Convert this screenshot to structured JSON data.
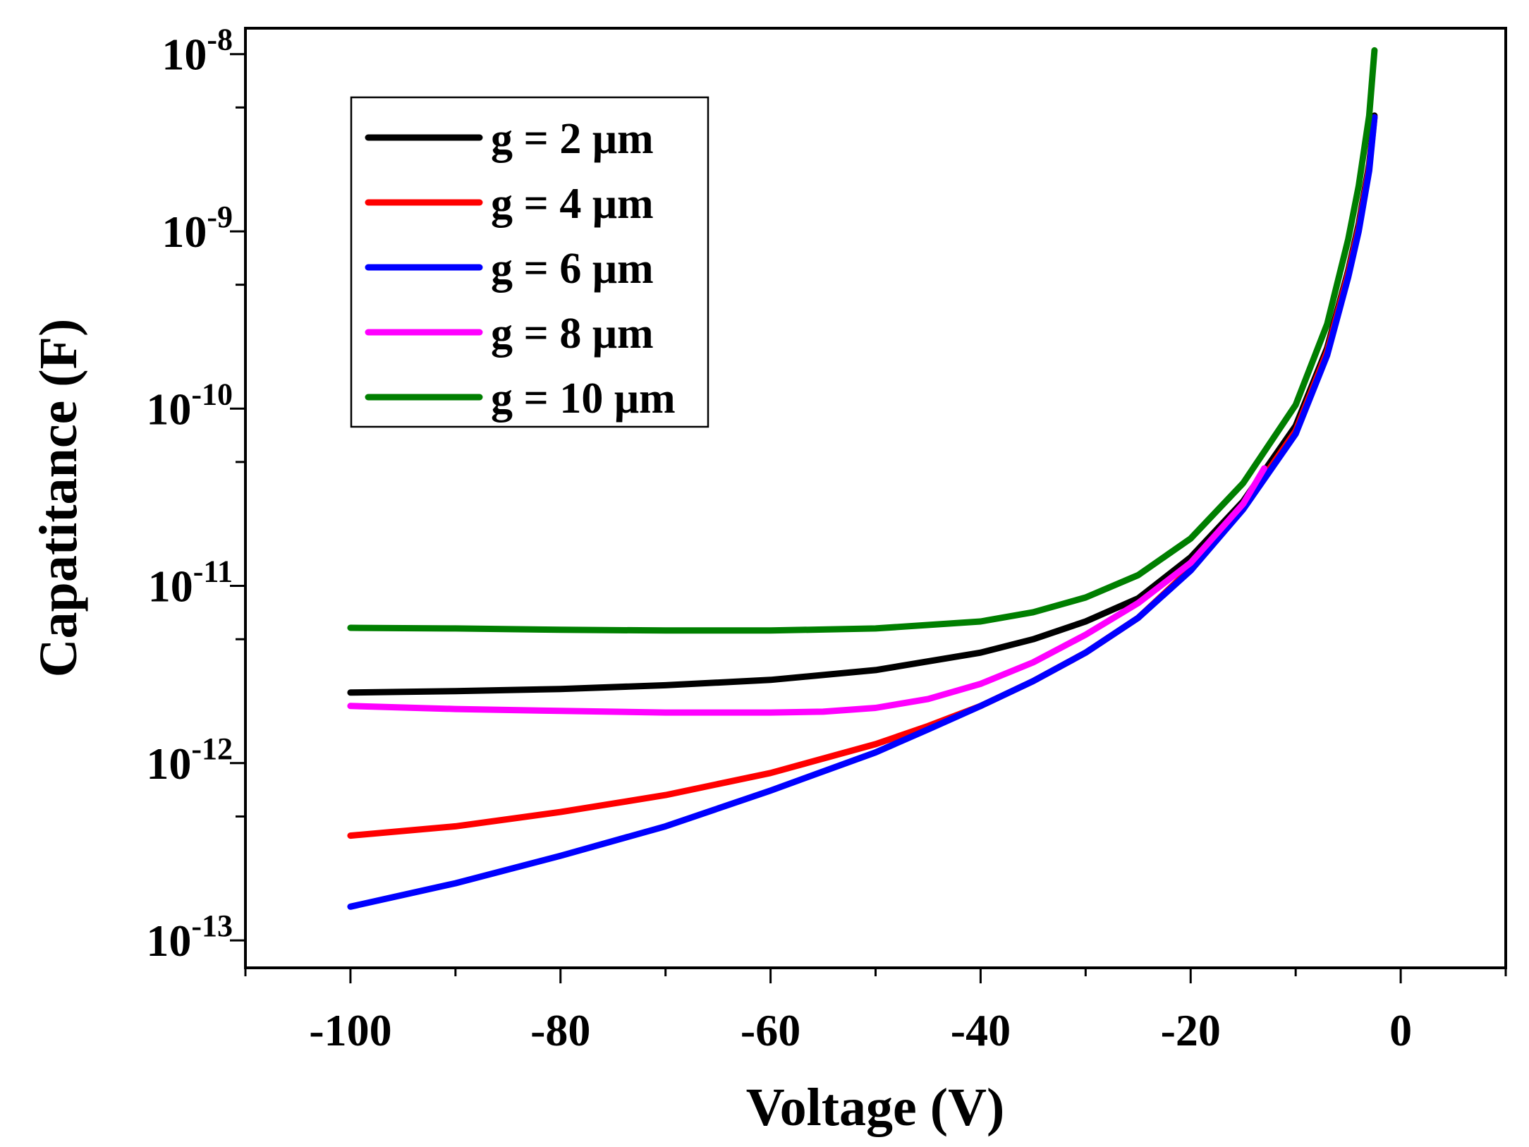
{
  "chart_data": {
    "type": "line",
    "title": "",
    "xlabel": "Voltage (V)",
    "ylabel": "Capatitance (F)",
    "xlim": [
      -110,
      10
    ],
    "ylim": [
      7e-14,
      1.4e-08
    ],
    "yscale": "log",
    "x_ticks": [
      {
        "value": -100,
        "label": "-100"
      },
      {
        "value": -80,
        "label": "-80"
      },
      {
        "value": -60,
        "label": "-60"
      },
      {
        "value": -40,
        "label": "-40"
      },
      {
        "value": -20,
        "label": "-20"
      },
      {
        "value": 0,
        "label": "0"
      }
    ],
    "y_ticks": [
      {
        "exp": -13,
        "base": "10",
        "sup": "-13"
      },
      {
        "exp": -12,
        "base": "10",
        "sup": "-12"
      },
      {
        "exp": -11,
        "base": "10",
        "sup": "-11"
      },
      {
        "exp": -10,
        "base": "10",
        "sup": "-10"
      },
      {
        "exp": -9,
        "base": "10",
        "sup": "-9"
      },
      {
        "exp": -8,
        "base": "10",
        "sup": "-8"
      }
    ],
    "legend_position": "top-left",
    "series": [
      {
        "name": "g = 2 μm",
        "color": "#000000",
        "x": [
          -100,
          -90,
          -80,
          -70,
          -60,
          -50,
          -40,
          -35,
          -30,
          -25,
          -20,
          -15,
          -10,
          -7,
          -5,
          -4,
          -3,
          -2.5
        ],
        "y": [
          2.5e-12,
          2.55e-12,
          2.62e-12,
          2.75e-12,
          2.95e-12,
          3.35e-12,
          4.2e-12,
          5e-12,
          6.3e-12,
          8.5e-12,
          1.45e-11,
          3e-11,
          8e-11,
          2.2e-10,
          6e-10,
          1.1e-09,
          2.4e-09,
          4.5e-09
        ]
      },
      {
        "name": "g = 4 μm",
        "color": "#ff0000",
        "x": [
          -100,
          -90,
          -80,
          -70,
          -60,
          -50,
          -45,
          -40,
          -35,
          -30,
          -25,
          -20,
          -15,
          -10,
          -7,
          -5,
          -4,
          -3,
          -2.5
        ],
        "y": [
          3.9e-13,
          4.4e-13,
          5.3e-13,
          6.6e-13,
          8.8e-13,
          1.28e-12,
          1.62e-12,
          2.1e-12,
          2.9e-12,
          4.2e-12,
          6.6e-12,
          1.25e-11,
          2.8e-11,
          7.5e-11,
          2.1e-10,
          5.8e-10,
          1.05e-09,
          2.3e-09,
          4.4e-09
        ]
      },
      {
        "name": "g = 6 μm",
        "color": "#0000ff",
        "x": [
          -100,
          -90,
          -80,
          -70,
          -60,
          -50,
          -45,
          -40,
          -35,
          -30,
          -25,
          -20,
          -15,
          -10,
          -7,
          -5,
          -4,
          -3,
          -2.5
        ],
        "y": [
          1.55e-13,
          2.1e-13,
          3e-13,
          4.4e-13,
          7e-13,
          1.15e-12,
          1.55e-12,
          2.1e-12,
          2.9e-12,
          4.2e-12,
          6.6e-12,
          1.22e-11,
          2.7e-11,
          7.2e-11,
          2e-10,
          5.5e-10,
          1e-09,
          2.2e-09,
          4.4e-09
        ]
      },
      {
        "name": "g = 8 μm",
        "color": "#ff00ff",
        "x": [
          -100,
          -90,
          -80,
          -70,
          -60,
          -55,
          -50,
          -45,
          -40,
          -35,
          -30,
          -25,
          -20,
          -15,
          -13
        ],
        "y": [
          2.1e-12,
          2.02e-12,
          1.97e-12,
          1.93e-12,
          1.93e-12,
          1.95e-12,
          2.05e-12,
          2.3e-12,
          2.8e-12,
          3.7e-12,
          5.3e-12,
          8e-12,
          1.35e-11,
          2.9e-11,
          4.6e-11
        ]
      },
      {
        "name": "g = 10 μm",
        "color": "#007f00",
        "x": [
          -100,
          -90,
          -80,
          -70,
          -60,
          -50,
          -40,
          -35,
          -30,
          -25,
          -20,
          -15,
          -10,
          -7,
          -5,
          -4,
          -3,
          -2.5
        ],
        "y": [
          5.8e-12,
          5.75e-12,
          5.65e-12,
          5.6e-12,
          5.6e-12,
          5.75e-12,
          6.3e-12,
          7.1e-12,
          8.6e-12,
          1.15e-11,
          1.85e-11,
          3.8e-11,
          1.05e-10,
          3e-10,
          9e-10,
          1.8e-09,
          4.5e-09,
          1.05e-08
        ]
      }
    ]
  }
}
